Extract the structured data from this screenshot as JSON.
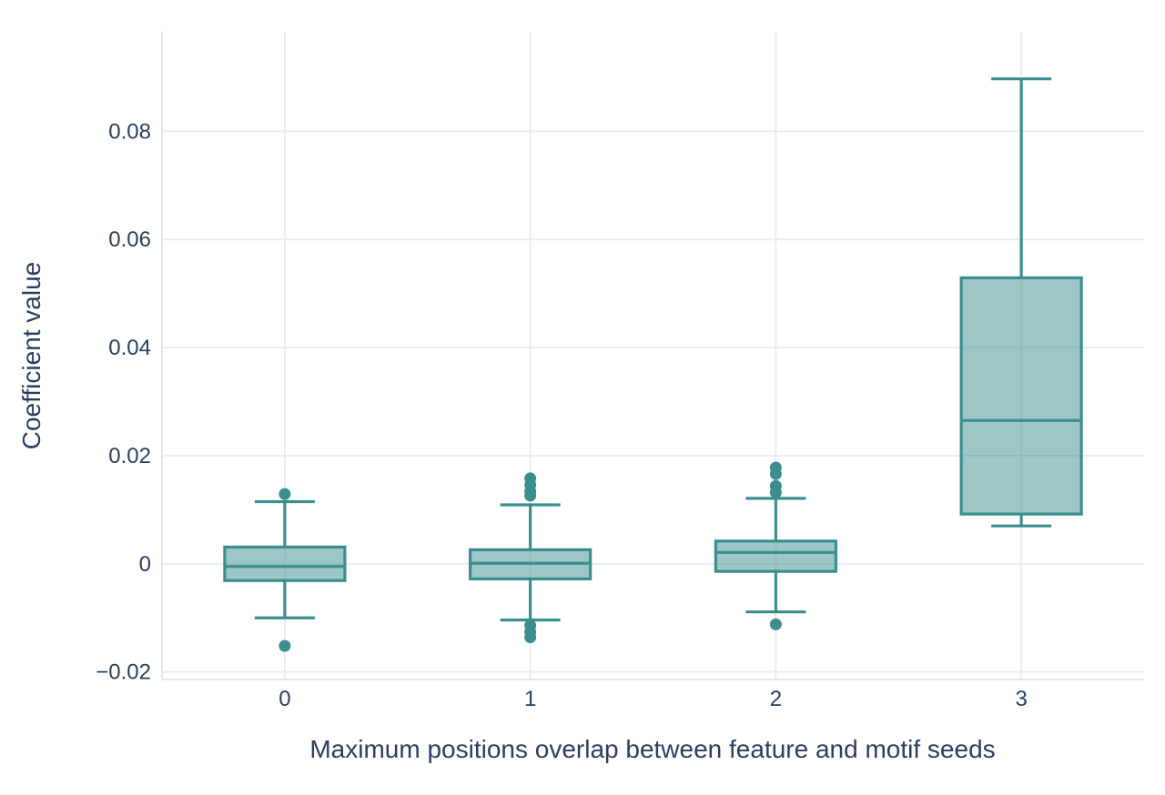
{
  "chart_data": {
    "type": "box",
    "title": "",
    "xlabel": "Maximum positions overlap between feature and motif seeds",
    "ylabel": "Coefficient value",
    "categories": [
      "0",
      "1",
      "2",
      "3"
    ],
    "boxes": [
      {
        "category": "0",
        "lower_whisker": -0.01,
        "q1": -0.0031,
        "median": -0.0005,
        "q3": 0.0031,
        "upper_whisker": 0.0115,
        "outliers_high": [
          0.0129
        ],
        "outliers_low": [
          -0.0152
        ]
      },
      {
        "category": "1",
        "lower_whisker": -0.0104,
        "q1": -0.0028,
        "median": 0.0001,
        "q3": 0.0026,
        "upper_whisker": 0.0109,
        "outliers_high": [
          0.0158,
          0.0146,
          0.0134,
          0.0126
        ],
        "outliers_low": [
          -0.0114,
          -0.0126,
          -0.0136
        ]
      },
      {
        "category": "2",
        "lower_whisker": -0.0089,
        "q1": -0.0014,
        "median": 0.0021,
        "q3": 0.0042,
        "upper_whisker": 0.0121,
        "outliers_high": [
          0.0178,
          0.0166,
          0.0144,
          0.0132
        ],
        "outliers_low": [
          -0.0112
        ]
      },
      {
        "category": "3",
        "lower_whisker": 0.007,
        "q1": 0.0092,
        "median": 0.0265,
        "q3": 0.0529,
        "upper_whisker": 0.0897,
        "outliers_high": [],
        "outliers_low": []
      }
    ],
    "y_ticks": [
      {
        "value": 0.08,
        "label": "0.08"
      },
      {
        "value": 0.06,
        "label": "0.06"
      },
      {
        "value": 0.04,
        "label": "0.04"
      },
      {
        "value": 0.02,
        "label": "0.02"
      },
      {
        "value": 0,
        "label": "0"
      },
      {
        "value": -0.02,
        "label": "−0.02"
      }
    ],
    "ylim": [
      -0.0214,
      0.0984
    ],
    "grid": true,
    "legend": false,
    "colors": {
      "box_line": "#3a8f8e",
      "box_fill": "rgba(58, 143, 142, 0.5)",
      "grid": "#e8edf4",
      "axis_line": "#dfe7f0",
      "text": "#2a3f5f",
      "background": "#ffffff"
    }
  }
}
